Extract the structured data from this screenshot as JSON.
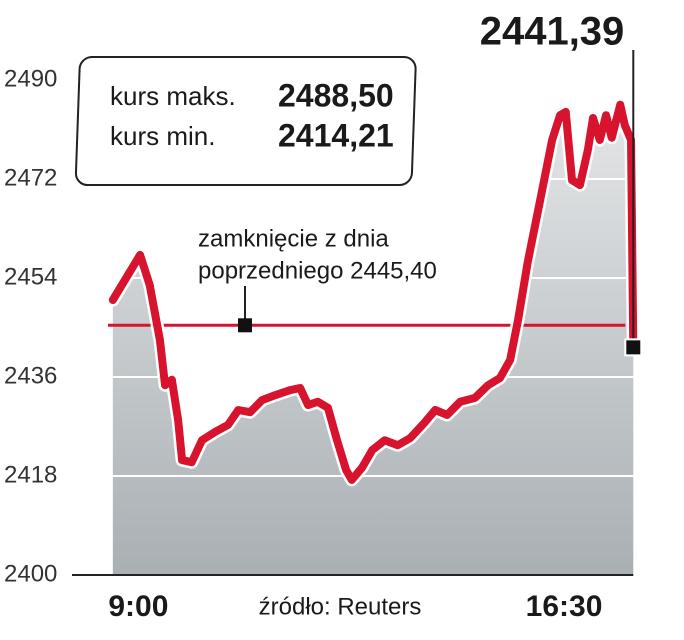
{
  "chart_data": {
    "type": "line",
    "x": [
      8.55,
      9.03,
      9.2,
      9.38,
      9.47,
      9.59,
      9.7,
      9.77,
      9.94,
      10.12,
      10.35,
      10.58,
      10.76,
      10.97,
      11.18,
      11.41,
      11.67,
      11.85,
      11.99,
      12.16,
      12.34,
      12.5,
      12.66,
      12.76,
      12.94,
      13.12,
      13.34,
      13.57,
      13.79,
      14.05,
      14.23,
      14.44,
      14.67,
      14.93,
      15.16,
      15.37,
      15.55,
      15.69,
      15.86,
      16.08,
      16.29,
      16.43,
      16.53,
      16.64,
      16.78,
      16.92,
      17.01,
      17.13,
      17.24,
      17.34,
      17.49,
      17.57,
      17.68,
      17.72
    ],
    "values": [
      2450.0,
      2458.2,
      2452.7,
      2442.7,
      2434.5,
      2435.5,
      2428.2,
      2420.9,
      2420.5,
      2424.5,
      2426.0,
      2427.3,
      2430.0,
      2429.6,
      2431.8,
      2432.7,
      2433.6,
      2434.0,
      2430.9,
      2431.5,
      2430.4,
      2424.5,
      2419.1,
      2417.3,
      2419.5,
      2422.7,
      2424.5,
      2423.6,
      2424.9,
      2427.8,
      2430.0,
      2429.1,
      2431.5,
      2432.2,
      2434.5,
      2435.8,
      2439.1,
      2446.4,
      2456.9,
      2468.2,
      2479.1,
      2483.6,
      2484.2,
      2471.8,
      2470.9,
      2477.3,
      2483.1,
      2479.1,
      2483.6,
      2479.5,
      2485.5,
      2481.8,
      2479.1,
      2441.39
    ],
    "color": "#d7132e",
    "last_label": "2441,39",
    "xlim": [
      8.5,
      17.75
    ],
    "xticks": [
      {
        "value": 9,
        "label": "9:00"
      },
      {
        "value": 16.5,
        "label": "16:30"
      }
    ],
    "ylim": [
      2400,
      2490
    ],
    "yticks": [
      2400,
      2418,
      2436,
      2454,
      2472,
      2490
    ],
    "grid": true,
    "reference": {
      "value": 2445.4,
      "text": [
        "zamknięcie z dnia",
        "poprzedniego 2445,40"
      ]
    },
    "info_box": [
      {
        "label": "kurs maks.",
        "value": "2488,50"
      },
      {
        "label": "kurs min.",
        "value": "2414,21"
      }
    ],
    "source": "źródło: Reuters"
  }
}
